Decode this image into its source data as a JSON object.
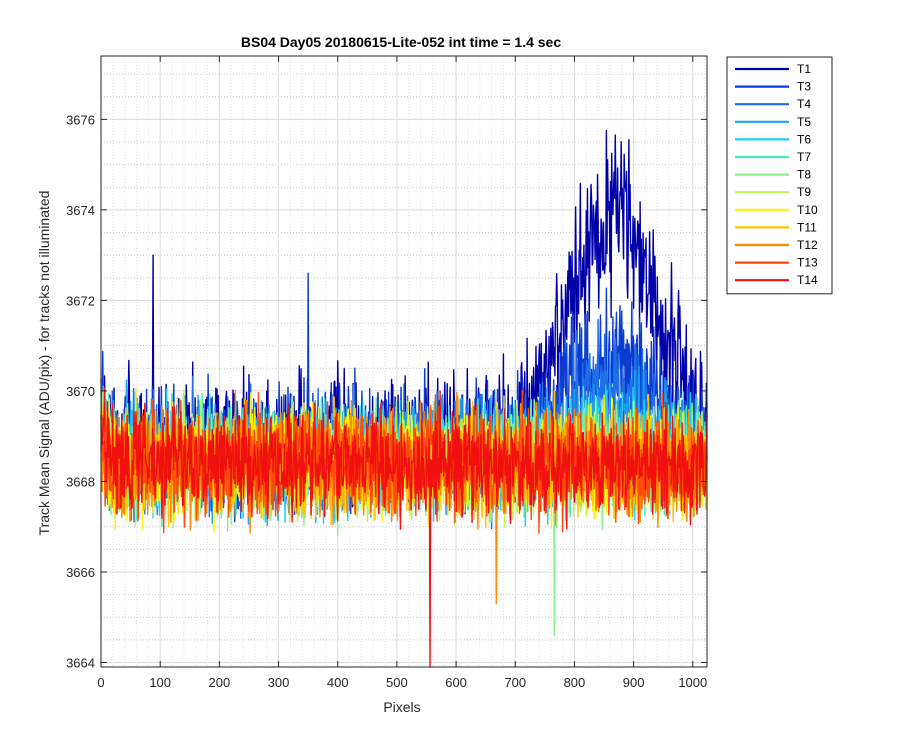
{
  "chart_data": {
    "type": "line",
    "title": "BS04 Day05 20180615-Lite-052 int time = 1.4 sec",
    "xlabel": "Pixels",
    "ylabel": "Track Mean Signal (ADU/pix) - for tracks not illuminated",
    "xlim": [
      0,
      1024
    ],
    "ylim": [
      3663.9,
      3677.4
    ],
    "xticks": [
      0,
      100,
      200,
      300,
      400,
      500,
      600,
      700,
      800,
      900,
      1000
    ],
    "yticks": [
      3664,
      3666,
      3668,
      3670,
      3672,
      3674,
      3676
    ],
    "grid": "major and minor",
    "legend_position": "outside-top-right",
    "series": [
      {
        "name": "T1",
        "color": "#0000A8",
        "base": 3668.9,
        "amp": 1.25,
        "bump": 6.2,
        "spike": {
          "x": 88,
          "y": 3673.0
        }
      },
      {
        "name": "T3",
        "color": "#0A3CD2",
        "base": 3668.7,
        "amp": 1.2,
        "bump": 2.6,
        "spike": {
          "x": 350,
          "y": 3672.6
        }
      },
      {
        "name": "T4",
        "color": "#1F6FE8",
        "base": 3668.6,
        "amp": 1.15,
        "bump": 1.9
      },
      {
        "name": "T5",
        "color": "#1AA3F0",
        "base": 3668.6,
        "amp": 1.1,
        "bump": 0.7
      },
      {
        "name": "T6",
        "color": "#1DD0F5",
        "base": 3668.5,
        "amp": 1.1,
        "bump": 0.3
      },
      {
        "name": "T7",
        "color": "#4CE8C8",
        "base": 3668.5,
        "amp": 1.05,
        "bump": 0.2
      },
      {
        "name": "T8",
        "color": "#8EF08C",
        "base": 3668.4,
        "amp": 1.05,
        "bump": 0.1,
        "spike": {
          "x": 766,
          "y": 3664.6
        }
      },
      {
        "name": "T9",
        "color": "#C4F25A",
        "base": 3668.4,
        "amp": 1.05,
        "bump": 0.1
      },
      {
        "name": "T10",
        "color": "#FFF200",
        "base": 3668.4,
        "amp": 1.05,
        "bump": 0.0
      },
      {
        "name": "T11",
        "color": "#FFC400",
        "base": 3668.4,
        "amp": 1.05,
        "bump": 0.0
      },
      {
        "name": "T12",
        "color": "#FF8A00",
        "base": 3668.4,
        "amp": 1.05,
        "bump": 0.0,
        "spike": {
          "x": 668,
          "y": 3665.3
        }
      },
      {
        "name": "T13",
        "color": "#FF4A0A",
        "base": 3668.4,
        "amp": 1.05,
        "bump": 0.0
      },
      {
        "name": "T14",
        "color": "#F01010",
        "base": 3668.4,
        "amp": 1.05,
        "bump": 0.0,
        "spike": {
          "x": 556,
          "y": 3663.9
        }
      }
    ]
  }
}
